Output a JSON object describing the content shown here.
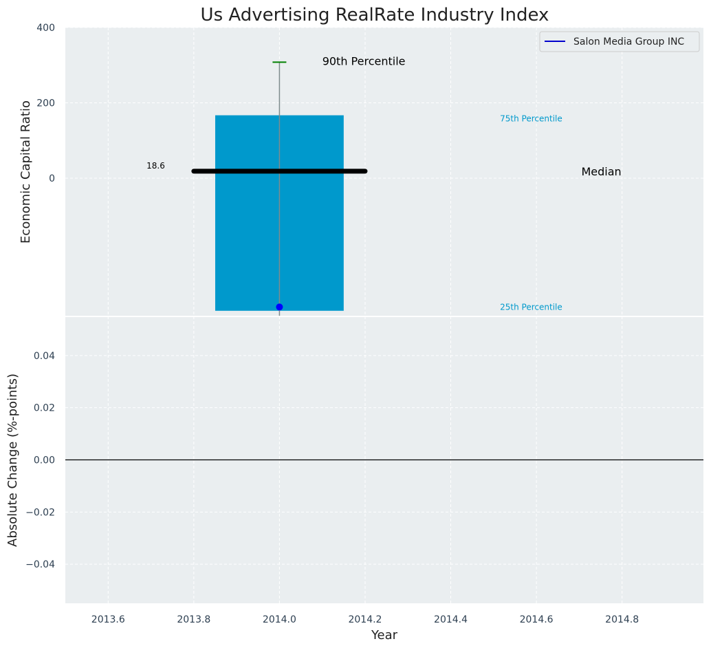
{
  "chart_data": {
    "type": "bar",
    "title": "Us Advertising RealRate Industry Index",
    "xlabel": "Year",
    "top_panel": {
      "ylabel": "Economic Capital Ratio",
      "ylim": [
        -367,
        400
      ],
      "yticks": [
        0,
        200,
        400
      ],
      "ytick_labels": [
        "0",
        "200",
        "400"
      ],
      "bar": {
        "x": 2014.0,
        "bottom": -352,
        "top": 167,
        "width": 0.3,
        "color": "#0099cc"
      },
      "whisker": {
        "x": 2014.0,
        "low": -367,
        "high": 308,
        "color": "#7f8c8d"
      },
      "p90_cap": {
        "x": 2014.0,
        "value": 308,
        "color": "#008000"
      },
      "median": {
        "x_start": 2013.8,
        "x_end": 2014.2,
        "value": 18.6,
        "label": "18.6"
      },
      "company_point": {
        "x": 2014.0,
        "value": -342,
        "color": "#0000ff"
      },
      "annotations": {
        "p90": "90th Percentile",
        "p75": "75th Percentile",
        "median": "Median",
        "p25": "25th Percentile"
      },
      "legend": {
        "label": "Salon Media Group INC",
        "color": "#0000cc",
        "placement": "top-right"
      }
    },
    "bottom_panel": {
      "ylabel": "Absolute Change (%-points)",
      "ylim": [
        -0.055,
        0.055
      ],
      "yticks": [
        -0.04,
        -0.02,
        0.0,
        0.02,
        0.04
      ],
      "ytick_labels": [
        "−0.04",
        "−0.02",
        "0.00",
        "0.02",
        "0.04"
      ],
      "zero_line": 0.0
    },
    "xlim": [
      2013.5,
      2014.99
    ],
    "xticks": [
      2013.6,
      2013.8,
      2014.0,
      2014.2,
      2014.4,
      2014.6,
      2014.8
    ],
    "xtick_labels": [
      "2013.6",
      "2013.8",
      "2014.0",
      "2014.2",
      "2014.4",
      "2014.6",
      "2014.8"
    ],
    "colors": {
      "plot_bg": "#eaeef0",
      "grid": "#ffffff",
      "p75_text": "#0099cc",
      "p25_text": "#0099cc"
    }
  }
}
